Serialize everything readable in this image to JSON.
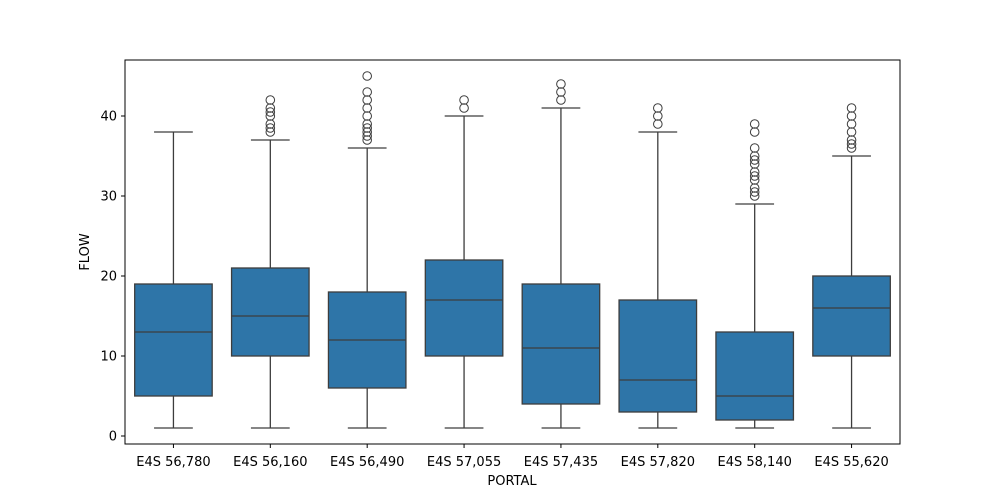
{
  "chart_data": {
    "type": "box",
    "xlabel": "PORTAL",
    "ylabel": "FLOW",
    "ylim": [
      -1,
      47
    ],
    "yticks": [
      0,
      10,
      20,
      30,
      40
    ],
    "grid": false,
    "box_color": "#2e75a8",
    "line_color": "#3d3d3d",
    "categories": [
      "E4S 56,780",
      "E4S 56,160",
      "E4S 56,490",
      "E4S 57,055",
      "E4S 57,435",
      "E4S 57,820",
      "E4S 58,140",
      "E4S 55,620"
    ],
    "boxes": [
      {
        "whislo": 1,
        "q1": 5,
        "med": 13,
        "q3": 19,
        "whishi": 38,
        "fliers": []
      },
      {
        "whislo": 1,
        "q1": 10,
        "med": 15,
        "q3": 21,
        "whishi": 37,
        "fliers": [
          38,
          38.5,
          39,
          40,
          40.5,
          41,
          42
        ]
      },
      {
        "whislo": 1,
        "q1": 6,
        "med": 12,
        "q3": 18,
        "whishi": 36,
        "fliers": [
          37,
          37.5,
          38,
          38.5,
          39,
          40,
          41,
          42,
          43,
          45
        ]
      },
      {
        "whislo": 1,
        "q1": 10,
        "med": 17,
        "q3": 22,
        "whishi": 40,
        "fliers": [
          41,
          42
        ]
      },
      {
        "whislo": 1,
        "q1": 4,
        "med": 11,
        "q3": 19,
        "whishi": 41,
        "fliers": [
          42,
          43,
          44
        ]
      },
      {
        "whislo": 1,
        "q1": 3,
        "med": 7,
        "q3": 17,
        "whishi": 38,
        "fliers": [
          39,
          40,
          41
        ]
      },
      {
        "whislo": 1,
        "q1": 2,
        "med": 5,
        "q3": 13,
        "whishi": 29,
        "fliers": [
          30,
          30.5,
          31,
          32,
          32.5,
          33,
          34,
          34.5,
          35,
          36,
          38,
          39
        ]
      },
      {
        "whislo": 1,
        "q1": 10,
        "med": 16,
        "q3": 20,
        "whishi": 35,
        "fliers": [
          36,
          36.5,
          37,
          38,
          39,
          40,
          41
        ]
      }
    ]
  }
}
